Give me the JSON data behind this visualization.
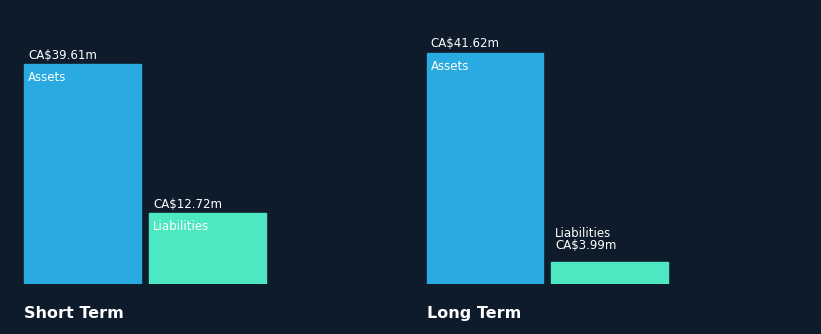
{
  "background_color": "#0d1b2a",
  "bar_color_assets": "#29aae1",
  "bar_color_liabilities": "#4de8c2",
  "text_color_white": "#ffffff",
  "short_term": {
    "assets_value": 39.61,
    "assets_label": "Assets",
    "assets_value_label": "CA$39.61m",
    "liabilities_value": 12.72,
    "liabilities_label": "Liabilities",
    "liabilities_value_label": "CA$12.72m",
    "group_label": "Short Term"
  },
  "long_term": {
    "assets_value": 41.62,
    "assets_label": "Assets",
    "assets_value_label": "CA$41.62m",
    "liabilities_value": 3.99,
    "liabilities_label": "Liabilities",
    "liabilities_value_label": "CA$3.99m",
    "group_label": "Long Term"
  },
  "max_value": 44.0,
  "figsize": [
    8.21,
    3.34
  ],
  "dpi": 100
}
